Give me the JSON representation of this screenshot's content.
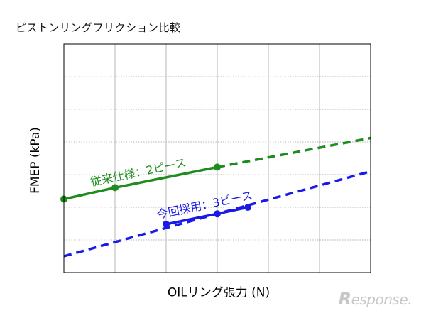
{
  "title": "ピストンリングフリクション比較",
  "chart_data": {
    "type": "line",
    "xlabel": "OILリング張力 (N)",
    "ylabel": "FMEP (kPa)",
    "x_categories": 6,
    "y_gridlines": 7,
    "grid": true,
    "series": [
      {
        "name": "従来仕様：2ピース",
        "color": "#1e8c1e",
        "solid_points": [
          [
            0,
            2.25
          ],
          [
            1,
            2.6
          ],
          [
            3,
            3.23
          ]
        ],
        "dashed_points": [
          [
            3,
            3.23
          ],
          [
            6,
            4.12
          ]
        ]
      },
      {
        "name": "今回採用：3ピース",
        "color": "#1a1ae6",
        "solid_points": [
          [
            2,
            1.48
          ],
          [
            3,
            1.8
          ],
          [
            3.6,
            2.0
          ]
        ],
        "dashed_points": [
          [
            0,
            0.5
          ],
          [
            6,
            3.1
          ]
        ]
      }
    ]
  },
  "watermark": {
    "initial": "R",
    "rest": "esponse."
  }
}
